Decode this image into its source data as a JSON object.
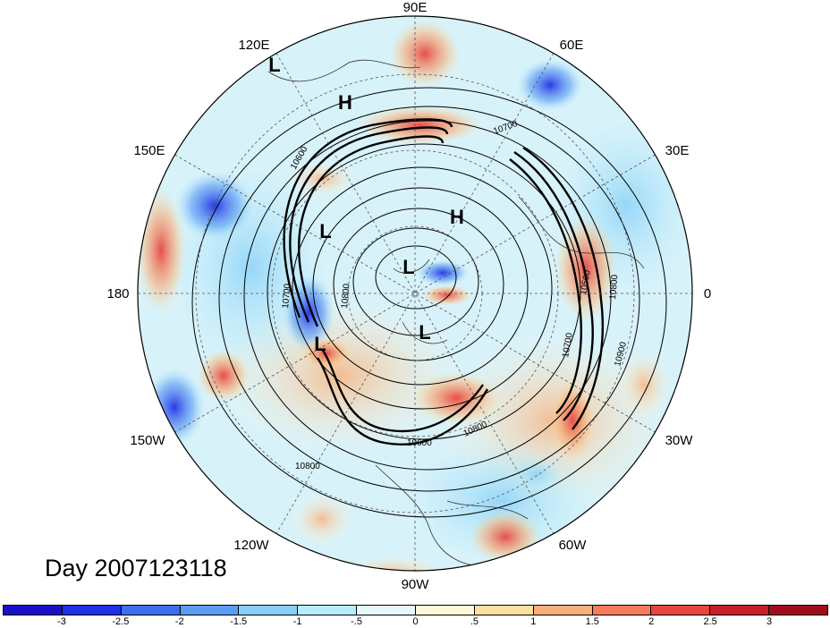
{
  "map": {
    "longitude_labels": {
      "lon_90e": "90E",
      "lon_60e": "60E",
      "lon_30e": "30E",
      "lon_0": "0",
      "lon_30w": "30W",
      "lon_60w": "60W",
      "lon_90w": "90W",
      "lon_120w": "120W",
      "lon_150w": "150W",
      "lon_180": "180",
      "lon_150e": "150E",
      "lon_120e": "120E"
    },
    "pressure_centers": [
      {
        "type": "L",
        "label": "L"
      },
      {
        "type": "H",
        "label": "H"
      },
      {
        "type": "H",
        "label": "H"
      },
      {
        "type": "L",
        "label": "L"
      },
      {
        "type": "L",
        "label": "L"
      },
      {
        "type": "L",
        "label": "L"
      },
      {
        "type": "L",
        "label": "L"
      }
    ],
    "contour_labels": [
      "10700",
      "10600",
      "10500",
      "10800",
      "10900",
      "10700",
      "10800",
      "10600",
      "10800",
      "10700",
      "10800"
    ],
    "colors": {
      "contour": "#000000",
      "grid": "#555555",
      "coast": "#333333"
    }
  },
  "day_label": "Day 2007123118",
  "colorbar": {
    "colors": [
      "#1a10c8",
      "#2030e6",
      "#3c6ef0",
      "#5a9ef4",
      "#86d0f8",
      "#b8ecfa",
      "#e6f8fc",
      "#fff8d8",
      "#fce0a0",
      "#f8b07a",
      "#f47c5a",
      "#e84440",
      "#c8202a",
      "#a00c1c"
    ],
    "tick_labels": [
      "-3",
      "-2.5",
      "-2",
      "-1.5",
      "-1",
      "-.5",
      "0",
      ".5",
      "1",
      "1.5",
      "2",
      "2.5",
      "3"
    ]
  }
}
